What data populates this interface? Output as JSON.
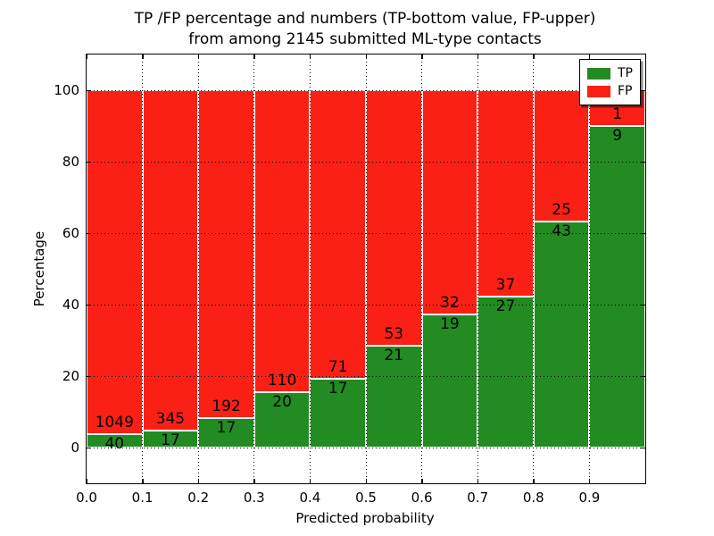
{
  "title": {
    "line1": "TP /FP percentage and numbers (TP-bottom value, FP-upper)",
    "line2": "from among 2145 submitted ML-type contacts"
  },
  "axes": {
    "xlabel": "Predicted probability",
    "ylabel": "Percentage"
  },
  "legend": {
    "position": "upper right",
    "items": [
      {
        "label": "TP",
        "color": "#228b22"
      },
      {
        "label": "FP",
        "color": "#fb2015"
      }
    ]
  },
  "chart_data": {
    "type": "bar",
    "stacked": true,
    "title": "TP /FP percentage and numbers (TP-bottom value, FP-upper) from among 2145 submitted ML-type contacts",
    "xlabel": "Predicted probability",
    "ylabel": "Percentage",
    "total_contacts": 2145,
    "bin_width": 0.1,
    "categories": [
      "0.0",
      "0.1",
      "0.2",
      "0.3",
      "0.4",
      "0.5",
      "0.6",
      "0.7",
      "0.8",
      "0.9"
    ],
    "series": [
      {
        "name": "TP",
        "color": "#228b22",
        "counts": [
          40,
          17,
          17,
          20,
          17,
          21,
          19,
          27,
          43,
          9
        ]
      },
      {
        "name": "FP",
        "color": "#fb2015",
        "counts": [
          1049,
          345,
          192,
          110,
          71,
          53,
          32,
          37,
          25,
          1
        ]
      }
    ],
    "bins": [
      {
        "x_start": 0.0,
        "x_end": 0.1,
        "tp_count": 40,
        "fp_count": 1049,
        "tp_percent": 3.7
      },
      {
        "x_start": 0.1,
        "x_end": 0.2,
        "tp_count": 17,
        "fp_count": 345,
        "tp_percent": 4.7
      },
      {
        "x_start": 0.2,
        "x_end": 0.3,
        "tp_count": 17,
        "fp_count": 192,
        "tp_percent": 8.1
      },
      {
        "x_start": 0.3,
        "x_end": 0.4,
        "tp_count": 20,
        "fp_count": 110,
        "tp_percent": 15.4
      },
      {
        "x_start": 0.4,
        "x_end": 0.5,
        "tp_count": 17,
        "fp_count": 71,
        "tp_percent": 19.3
      },
      {
        "x_start": 0.5,
        "x_end": 0.6,
        "tp_count": 21,
        "fp_count": 53,
        "tp_percent": 28.4
      },
      {
        "x_start": 0.6,
        "x_end": 0.7,
        "tp_count": 19,
        "fp_count": 32,
        "tp_percent": 37.3
      },
      {
        "x_start": 0.7,
        "x_end": 0.8,
        "tp_count": 27,
        "fp_count": 37,
        "tp_percent": 42.2
      },
      {
        "x_start": 0.8,
        "x_end": 0.9,
        "tp_count": 43,
        "fp_count": 25,
        "tp_percent": 63.2
      },
      {
        "x_start": 0.9,
        "x_end": 1.0,
        "tp_count": 9,
        "fp_count": 1,
        "tp_percent": 90.0
      }
    ],
    "x_ticks": [
      "0.0",
      "0.1",
      "0.2",
      "0.3",
      "0.4",
      "0.5",
      "0.6",
      "0.7",
      "0.8",
      "0.9"
    ],
    "y_ticks": [
      0,
      20,
      40,
      60,
      80,
      100
    ],
    "xlim": [
      0,
      1
    ],
    "ylim": [
      -10,
      110
    ],
    "grid": "dotted",
    "bar_edge_color": "#ffffff",
    "label_scheme": "TP count below segment boundary, FP count above segment boundary"
  }
}
